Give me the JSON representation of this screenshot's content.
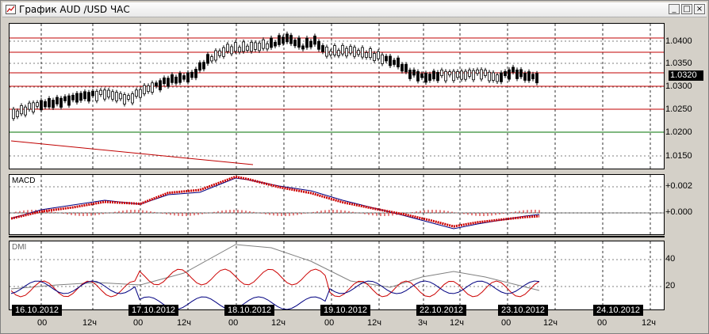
{
  "window": {
    "title": "График AUD /USD  ЧАС",
    "buttons": [
      "_",
      "□",
      "×"
    ]
  },
  "price_panel": {
    "y_labels": [
      "1.0400",
      "1.0350",
      "1.0300",
      "1.0250",
      "1.0200",
      "1.0150"
    ],
    "current_price": "1.0320",
    "colors": {
      "levels": "#c00000",
      "support": "#007000",
      "candles": "#000000"
    }
  },
  "macd": {
    "label": "MACD",
    "y_labels": [
      "+0.002",
      "+0.000"
    ],
    "colors": {
      "macd_line": "#000080",
      "signal": "#cc0000",
      "histogram": "#cc0000"
    }
  },
  "dmi": {
    "label": "DMI",
    "y_labels": [
      "40",
      "20"
    ],
    "colors": {
      "adx": "#808080",
      "plus_di": "#cc0000",
      "minus_di": "#000080"
    }
  },
  "time_axis": {
    "dates": [
      "16.10.2012",
      "17.10.2012",
      "18.10.2012",
      "19.10.2012",
      "22.10.2012",
      "23.10.2012",
      "24.10.2012"
    ],
    "hours": [
      "00",
      "12ч",
      "00",
      "12ч",
      "00",
      "12ч",
      "00",
      "12ч",
      "3ч",
      "12ч",
      "00",
      "12ч",
      "00",
      "12ч"
    ]
  }
}
